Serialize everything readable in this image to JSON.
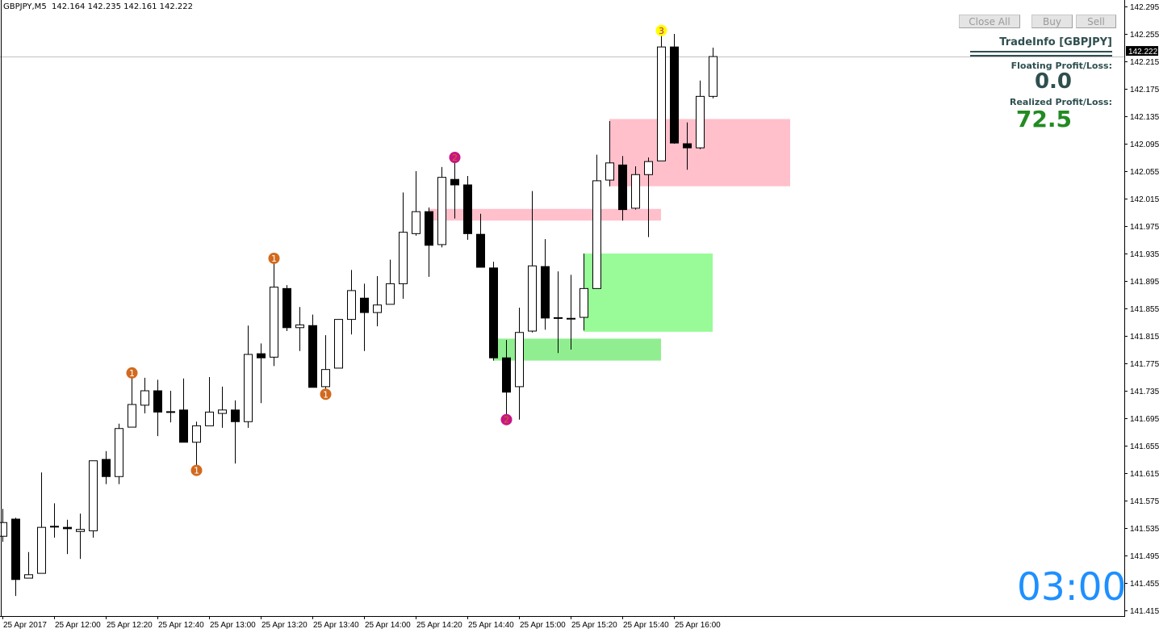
{
  "header": {
    "symbol_tf": "GBPJPY,M5",
    "ohlc_text": "142.164 142.235 142.161 142.222"
  },
  "buttons": {
    "close_all": "Close All",
    "buy": "Buy",
    "sell": "Sell"
  },
  "tradeinfo": {
    "title": "TradeInfo [GBPJPY]",
    "floating_label": "Floating Profit/Loss:",
    "floating_value": "0.0",
    "realized_label": "Realized Profit/Loss:",
    "realized_value": "72.5",
    "text_color": "#2F4F4F",
    "realized_color": "#228B22"
  },
  "timer": "03:00",
  "bid_label": "142.222",
  "chart_data": {
    "type": "candlestick",
    "symbol": "GBPJPY",
    "timeframe": "M5",
    "date": "25 Apr 2017",
    "start_time": "11:40",
    "interval_minutes": 5,
    "ylim": [
      141.415,
      142.295
    ],
    "y_ticks": [
      "142.295",
      "142.255",
      "142.215",
      "142.175",
      "142.135",
      "142.095",
      "142.055",
      "142.015",
      "141.975",
      "141.935",
      "141.895",
      "141.855",
      "141.815",
      "141.775",
      "141.735",
      "141.695",
      "141.655",
      "141.615",
      "141.575",
      "141.535",
      "141.495",
      "141.455",
      "141.415"
    ],
    "x_tick_labels": [
      "25 Apr 2017",
      "25 Apr 12:00",
      "25 Apr 12:20",
      "25 Apr 12:40",
      "25 Apr 13:00",
      "25 Apr 13:20",
      "25 Apr 13:40",
      "25 Apr 14:00",
      "25 Apr 14:20",
      "25 Apr 14:40",
      "25 Apr 15:00",
      "25 Apr 15:20",
      "25 Apr 15:40",
      "25 Apr 16:00"
    ],
    "x_tick_times": [
      "11:40",
      "12:00",
      "12:20",
      "12:40",
      "13:00",
      "13:20",
      "13:40",
      "14:00",
      "14:20",
      "14:40",
      "15:00",
      "15:20",
      "15:40",
      "16:00"
    ],
    "bid": 142.222,
    "candles": [
      [
        141.523,
        141.563,
        141.515,
        141.543
      ],
      [
        141.548,
        141.55,
        141.436,
        141.46
      ],
      [
        141.462,
        141.5,
        141.462,
        141.467
      ],
      [
        141.469,
        141.616,
        141.469,
        141.536
      ],
      [
        141.537,
        141.571,
        141.521,
        141.537
      ],
      [
        141.536,
        141.547,
        141.497,
        141.534
      ],
      [
        141.53,
        141.556,
        141.49,
        141.533
      ],
      [
        141.531,
        141.633,
        141.521,
        141.633
      ],
      [
        141.635,
        141.647,
        141.599,
        141.61
      ],
      [
        141.61,
        141.687,
        141.599,
        141.68
      ],
      [
        141.682,
        141.761,
        141.682,
        141.715
      ],
      [
        141.714,
        141.754,
        141.702,
        141.735
      ],
      [
        141.735,
        141.751,
        141.669,
        141.704
      ],
      [
        141.704,
        141.735,
        141.689,
        141.704
      ],
      [
        141.707,
        141.753,
        141.66,
        141.66
      ],
      [
        141.66,
        141.69,
        141.619,
        141.684
      ],
      [
        141.684,
        141.755,
        141.684,
        141.704
      ],
      [
        141.702,
        141.741,
        141.681,
        141.707
      ],
      [
        141.707,
        141.721,
        141.629,
        141.69
      ],
      [
        141.69,
        141.83,
        141.681,
        141.788
      ],
      [
        141.789,
        141.804,
        141.717,
        141.783
      ],
      [
        141.784,
        141.928,
        141.771,
        141.886
      ],
      [
        141.884,
        141.889,
        141.822,
        141.827
      ],
      [
        141.827,
        141.857,
        141.793,
        141.831
      ],
      [
        141.83,
        141.846,
        141.74,
        141.74
      ],
      [
        141.741,
        141.816,
        141.73,
        141.766
      ],
      [
        141.768,
        141.839,
        141.768,
        141.839
      ],
      [
        141.839,
        141.911,
        141.817,
        141.881
      ],
      [
        141.87,
        141.891,
        141.793,
        141.849
      ],
      [
        141.849,
        141.902,
        141.829,
        141.86
      ],
      [
        141.861,
        141.926,
        141.861,
        141.891
      ],
      [
        141.891,
        142.024,
        141.869,
        141.966
      ],
      [
        141.964,
        142.055,
        141.961,
        141.996
      ],
      [
        141.996,
        142.002,
        141.901,
        141.947
      ],
      [
        141.948,
        142.061,
        141.944,
        142.046
      ],
      [
        142.043,
        142.076,
        141.986,
        142.035
      ],
      [
        142.035,
        142.048,
        141.955,
        141.964
      ],
      [
        141.963,
        141.993,
        141.915,
        141.915
      ],
      [
        141.914,
        141.923,
        141.779,
        141.783
      ],
      [
        141.783,
        141.809,
        141.694,
        141.733
      ],
      [
        141.741,
        141.856,
        141.693,
        141.82
      ],
      [
        141.822,
        142.026,
        141.82,
        141.917
      ],
      [
        141.916,
        141.956,
        141.824,
        141.841
      ],
      [
        141.841,
        141.909,
        141.79,
        141.841
      ],
      [
        141.84,
        141.904,
        141.795,
        141.84
      ],
      [
        141.842,
        141.935,
        141.823,
        141.884
      ],
      [
        141.884,
        142.079,
        141.884,
        142.041
      ],
      [
        142.042,
        142.128,
        142.033,
        142.067
      ],
      [
        142.064,
        142.077,
        141.983,
        141.999
      ],
      [
        142.001,
        142.062,
        141.999,
        142.05
      ],
      [
        142.05,
        142.075,
        141.959,
        142.069
      ],
      [
        142.07,
        142.26,
        142.07,
        142.236
      ],
      [
        142.236,
        142.255,
        142.095,
        142.096
      ],
      [
        142.095,
        142.126,
        142.057,
        142.089
      ],
      [
        142.089,
        142.187,
        142.087,
        142.164
      ],
      [
        142.164,
        142.235,
        142.161,
        142.222
      ]
    ],
    "zones": [
      {
        "kind": "supply",
        "from": "15:35",
        "to": "16:45",
        "top": 142.131,
        "bottom": 142.033,
        "color": "#FFC0CB"
      },
      {
        "kind": "supply",
        "from": "14:25",
        "to": "15:55",
        "top": 142.0,
        "bottom": 141.983,
        "color": "#FFC0CB"
      },
      {
        "kind": "demand",
        "from": "15:25",
        "to": "16:15",
        "top": 141.935,
        "bottom": 141.821,
        "color": "#98FB98"
      },
      {
        "kind": "demand",
        "from": "14:50",
        "to": "15:55",
        "top": 141.811,
        "bottom": 141.779,
        "color": "#90EE90"
      }
    ],
    "markers": [
      {
        "time": "12:30",
        "price": 141.761,
        "label": "1",
        "fill": "#D2691E",
        "text": "#FFFFFF"
      },
      {
        "time": "12:55",
        "price": 141.619,
        "label": "1",
        "fill": "#D2691E",
        "text": "#FFFFFF"
      },
      {
        "time": "13:25",
        "price": 141.928,
        "label": "1",
        "fill": "#D2691E",
        "text": "#FFFFFF"
      },
      {
        "time": "13:45",
        "price": 141.73,
        "label": "1",
        "fill": "#D2691E",
        "text": "#FFFFFF"
      },
      {
        "time": "14:35",
        "price": 142.075,
        "label": "2",
        "fill": "#C71585",
        "text": "#D2691E"
      },
      {
        "time": "14:55",
        "price": 141.693,
        "label": "2",
        "fill": "#C71585",
        "text": "#D2691E"
      },
      {
        "time": "15:55",
        "price": 142.26,
        "label": "3",
        "fill": "#FFFF00",
        "text": "#C71585"
      }
    ]
  }
}
